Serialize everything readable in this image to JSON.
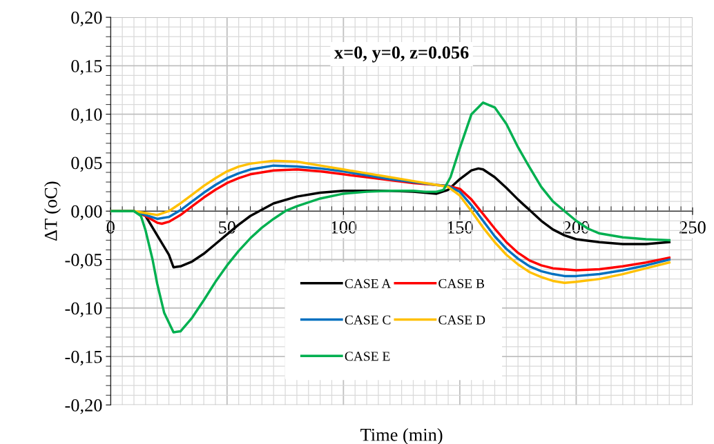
{
  "chart_data": {
    "type": "line",
    "title": "x=0, y=0, z=0.056",
    "xlabel": "Time (min)",
    "ylabel": "ΔT (oC)",
    "xlim": [
      0,
      250
    ],
    "xticks": [
      0,
      50,
      100,
      150,
      200,
      250
    ],
    "ylim": [
      -0.2,
      0.2
    ],
    "yticks": [
      {
        "value": -0.2,
        "label": "-0,20"
      },
      {
        "value": -0.15,
        "label": "-0,15"
      },
      {
        "value": -0.1,
        "label": "-0,10"
      },
      {
        "value": -0.05,
        "label": "-0,05"
      },
      {
        "value": 0,
        "label": "0,00"
      },
      {
        "value": 0.05,
        "label": "0,05"
      },
      {
        "value": 0.1,
        "label": "0,10"
      },
      {
        "value": 0.15,
        "label": "0,15"
      },
      {
        "value": 0.2,
        "label": "0,20"
      }
    ],
    "grid": true,
    "legend": "bottom",
    "marker": "none",
    "line_style": "solid",
    "series": [
      {
        "name": "CASE A",
        "color": "#000000",
        "x": [
          0,
          5,
          10,
          15,
          20,
          25,
          27,
          30,
          35,
          40,
          45,
          50,
          55,
          60,
          70,
          80,
          90,
          100,
          110,
          120,
          130,
          135,
          140,
          145,
          150,
          155,
          158,
          160,
          165,
          170,
          175,
          180,
          185,
          190,
          195,
          200,
          210,
          220,
          230,
          240
        ],
        "values": [
          0,
          0,
          0,
          -0.005,
          -0.025,
          -0.045,
          -0.058,
          -0.057,
          -0.052,
          -0.044,
          -0.034,
          -0.024,
          -0.014,
          -0.005,
          0.008,
          0.015,
          0.019,
          0.021,
          0.021,
          0.021,
          0.02,
          0.019,
          0.018,
          0.022,
          0.033,
          0.042,
          0.044,
          0.043,
          0.035,
          0.024,
          0.012,
          0.001,
          -0.01,
          -0.019,
          -0.025,
          -0.029,
          -0.032,
          -0.034,
          -0.034,
          -0.032
        ]
      },
      {
        "name": "CASE B",
        "color": "#ff0000",
        "x": [
          0,
          10,
          15,
          20,
          22,
          25,
          30,
          35,
          40,
          45,
          50,
          55,
          60,
          70,
          80,
          90,
          100,
          110,
          120,
          130,
          140,
          145,
          150,
          155,
          160,
          165,
          170,
          175,
          180,
          185,
          190,
          200,
          210,
          220,
          230,
          240
        ],
        "values": [
          0,
          0,
          -0.005,
          -0.012,
          -0.013,
          -0.011,
          -0.004,
          0.005,
          0.014,
          0.022,
          0.029,
          0.034,
          0.038,
          0.042,
          0.043,
          0.041,
          0.038,
          0.035,
          0.032,
          0.029,
          0.027,
          0.026,
          0.023,
          0.012,
          -0.003,
          -0.018,
          -0.032,
          -0.043,
          -0.051,
          -0.056,
          -0.059,
          -0.061,
          -0.06,
          -0.057,
          -0.053,
          -0.048
        ]
      },
      {
        "name": "CASE C",
        "color": "#0070c0",
        "x": [
          0,
          10,
          15,
          20,
          25,
          30,
          35,
          40,
          45,
          50,
          55,
          60,
          70,
          80,
          90,
          100,
          110,
          120,
          130,
          140,
          145,
          150,
          155,
          160,
          165,
          170,
          175,
          180,
          185,
          190,
          195,
          200,
          210,
          220,
          230,
          240
        ],
        "values": [
          0,
          0,
          -0.004,
          -0.008,
          -0.006,
          0.001,
          0.01,
          0.019,
          0.027,
          0.034,
          0.039,
          0.043,
          0.047,
          0.046,
          0.044,
          0.041,
          0.037,
          0.033,
          0.03,
          0.027,
          0.026,
          0.02,
          0.006,
          -0.01,
          -0.026,
          -0.039,
          -0.049,
          -0.057,
          -0.062,
          -0.065,
          -0.067,
          -0.067,
          -0.065,
          -0.061,
          -0.056,
          -0.05
        ]
      },
      {
        "name": "CASE D",
        "color": "#ffc000",
        "x": [
          0,
          10,
          15,
          20,
          25,
          30,
          35,
          40,
          45,
          50,
          55,
          60,
          70,
          80,
          90,
          100,
          110,
          120,
          130,
          140,
          145,
          150,
          155,
          160,
          165,
          170,
          175,
          180,
          185,
          190,
          195,
          200,
          210,
          220,
          230,
          240
        ],
        "values": [
          0,
          0,
          -0.002,
          -0.004,
          0.0,
          0.008,
          0.017,
          0.026,
          0.034,
          0.041,
          0.046,
          0.049,
          0.052,
          0.051,
          0.047,
          0.043,
          0.039,
          0.035,
          0.031,
          0.027,
          0.025,
          0.016,
          0.0,
          -0.017,
          -0.032,
          -0.045,
          -0.055,
          -0.063,
          -0.068,
          -0.072,
          -0.074,
          -0.073,
          -0.07,
          -0.065,
          -0.059,
          -0.053
        ]
      },
      {
        "name": "CASE E",
        "color": "#00b050",
        "x": [
          0,
          5,
          10,
          13,
          15,
          18,
          20,
          23,
          27,
          30,
          35,
          40,
          45,
          50,
          55,
          60,
          65,
          70,
          75,
          80,
          90,
          100,
          110,
          120,
          130,
          135,
          140,
          143,
          146,
          150,
          155,
          160,
          165,
          170,
          175,
          180,
          185,
          190,
          195,
          200,
          205,
          210,
          220,
          230,
          240
        ],
        "values": [
          0,
          0,
          0,
          -0.005,
          -0.02,
          -0.05,
          -0.075,
          -0.105,
          -0.125,
          -0.124,
          -0.11,
          -0.092,
          -0.073,
          -0.056,
          -0.041,
          -0.028,
          -0.017,
          -0.008,
          0.0,
          0.005,
          0.013,
          0.018,
          0.02,
          0.021,
          0.021,
          0.02,
          0.02,
          0.022,
          0.035,
          0.065,
          0.1,
          0.112,
          0.107,
          0.09,
          0.066,
          0.045,
          0.025,
          0.01,
          0.0,
          -0.01,
          -0.018,
          -0.023,
          -0.027,
          -0.029,
          -0.03
        ]
      }
    ]
  }
}
